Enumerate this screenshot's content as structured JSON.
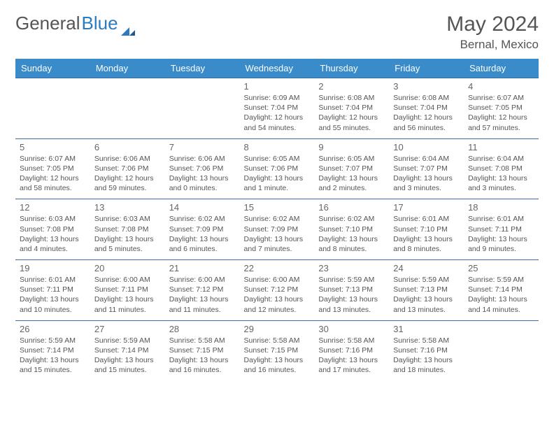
{
  "brand": {
    "part1": "General",
    "part2": "Blue"
  },
  "title": "May 2024",
  "location": "Bernal, Mexico",
  "colors": {
    "header_bg": "#3a8bc9",
    "header_text": "#ffffff",
    "row_border": "#3a6ea5",
    "text": "#555555",
    "brand_gray": "#555555",
    "brand_blue": "#2b7bbf"
  },
  "daynames": [
    "Sunday",
    "Monday",
    "Tuesday",
    "Wednesday",
    "Thursday",
    "Friday",
    "Saturday"
  ],
  "weeks": [
    [
      null,
      null,
      null,
      {
        "n": "1",
        "sr": "6:09 AM",
        "ss": "7:04 PM",
        "dl": "12 hours and 54 minutes."
      },
      {
        "n": "2",
        "sr": "6:08 AM",
        "ss": "7:04 PM",
        "dl": "12 hours and 55 minutes."
      },
      {
        "n": "3",
        "sr": "6:08 AM",
        "ss": "7:04 PM",
        "dl": "12 hours and 56 minutes."
      },
      {
        "n": "4",
        "sr": "6:07 AM",
        "ss": "7:05 PM",
        "dl": "12 hours and 57 minutes."
      }
    ],
    [
      {
        "n": "5",
        "sr": "6:07 AM",
        "ss": "7:05 PM",
        "dl": "12 hours and 58 minutes."
      },
      {
        "n": "6",
        "sr": "6:06 AM",
        "ss": "7:06 PM",
        "dl": "12 hours and 59 minutes."
      },
      {
        "n": "7",
        "sr": "6:06 AM",
        "ss": "7:06 PM",
        "dl": "13 hours and 0 minutes."
      },
      {
        "n": "8",
        "sr": "6:05 AM",
        "ss": "7:06 PM",
        "dl": "13 hours and 1 minute."
      },
      {
        "n": "9",
        "sr": "6:05 AM",
        "ss": "7:07 PM",
        "dl": "13 hours and 2 minutes."
      },
      {
        "n": "10",
        "sr": "6:04 AM",
        "ss": "7:07 PM",
        "dl": "13 hours and 3 minutes."
      },
      {
        "n": "11",
        "sr": "6:04 AM",
        "ss": "7:08 PM",
        "dl": "13 hours and 3 minutes."
      }
    ],
    [
      {
        "n": "12",
        "sr": "6:03 AM",
        "ss": "7:08 PM",
        "dl": "13 hours and 4 minutes."
      },
      {
        "n": "13",
        "sr": "6:03 AM",
        "ss": "7:08 PM",
        "dl": "13 hours and 5 minutes."
      },
      {
        "n": "14",
        "sr": "6:02 AM",
        "ss": "7:09 PM",
        "dl": "13 hours and 6 minutes."
      },
      {
        "n": "15",
        "sr": "6:02 AM",
        "ss": "7:09 PM",
        "dl": "13 hours and 7 minutes."
      },
      {
        "n": "16",
        "sr": "6:02 AM",
        "ss": "7:10 PM",
        "dl": "13 hours and 8 minutes."
      },
      {
        "n": "17",
        "sr": "6:01 AM",
        "ss": "7:10 PM",
        "dl": "13 hours and 8 minutes."
      },
      {
        "n": "18",
        "sr": "6:01 AM",
        "ss": "7:11 PM",
        "dl": "13 hours and 9 minutes."
      }
    ],
    [
      {
        "n": "19",
        "sr": "6:01 AM",
        "ss": "7:11 PM",
        "dl": "13 hours and 10 minutes."
      },
      {
        "n": "20",
        "sr": "6:00 AM",
        "ss": "7:11 PM",
        "dl": "13 hours and 11 minutes."
      },
      {
        "n": "21",
        "sr": "6:00 AM",
        "ss": "7:12 PM",
        "dl": "13 hours and 11 minutes."
      },
      {
        "n": "22",
        "sr": "6:00 AM",
        "ss": "7:12 PM",
        "dl": "13 hours and 12 minutes."
      },
      {
        "n": "23",
        "sr": "5:59 AM",
        "ss": "7:13 PM",
        "dl": "13 hours and 13 minutes."
      },
      {
        "n": "24",
        "sr": "5:59 AM",
        "ss": "7:13 PM",
        "dl": "13 hours and 13 minutes."
      },
      {
        "n": "25",
        "sr": "5:59 AM",
        "ss": "7:14 PM",
        "dl": "13 hours and 14 minutes."
      }
    ],
    [
      {
        "n": "26",
        "sr": "5:59 AM",
        "ss": "7:14 PM",
        "dl": "13 hours and 15 minutes."
      },
      {
        "n": "27",
        "sr": "5:59 AM",
        "ss": "7:14 PM",
        "dl": "13 hours and 15 minutes."
      },
      {
        "n": "28",
        "sr": "5:58 AM",
        "ss": "7:15 PM",
        "dl": "13 hours and 16 minutes."
      },
      {
        "n": "29",
        "sr": "5:58 AM",
        "ss": "7:15 PM",
        "dl": "13 hours and 16 minutes."
      },
      {
        "n": "30",
        "sr": "5:58 AM",
        "ss": "7:16 PM",
        "dl": "13 hours and 17 minutes."
      },
      {
        "n": "31",
        "sr": "5:58 AM",
        "ss": "7:16 PM",
        "dl": "13 hours and 18 minutes."
      },
      null
    ]
  ],
  "labels": {
    "sunrise": "Sunrise: ",
    "sunset": "Sunset: ",
    "daylight": "Daylight: "
  }
}
